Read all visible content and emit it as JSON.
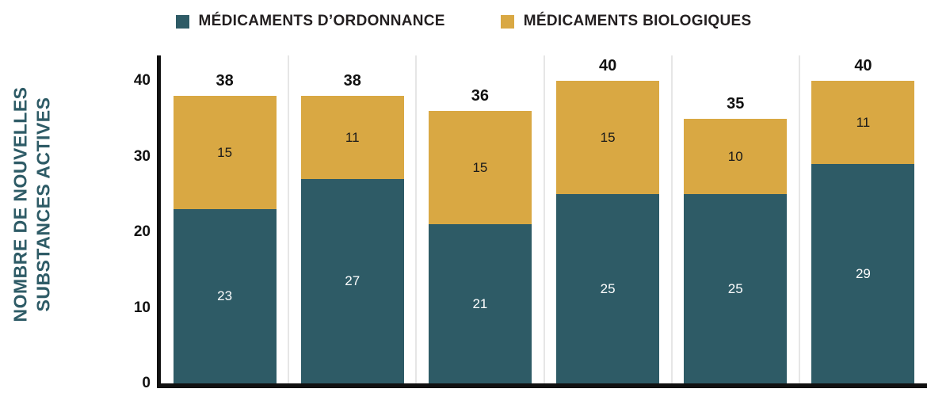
{
  "legend": {
    "position": "top",
    "items": [
      {
        "label": "MÉDICAMENTS D’ORDONNANCE",
        "color": "#2e5b66"
      },
      {
        "label": "MÉDICAMENTS BIOLOGIQUES",
        "color": "#d9a843"
      }
    ]
  },
  "chart_data": {
    "type": "bar",
    "stacked": true,
    "title": "",
    "xlabel": "",
    "ylabel": "NOMBRE DE NOUVELLES SUBSTANCES ACTIVES",
    "ylim": [
      0,
      40
    ],
    "yticks": [
      0,
      10,
      20,
      30,
      40
    ],
    "grid": "vertical-light",
    "legend_position": "top",
    "series": [
      {
        "name": "MÉDICAMENTS D’ORDONNANCE",
        "color": "#2e5b66",
        "values": [
          23,
          27,
          21,
          25,
          25,
          29
        ]
      },
      {
        "name": "MÉDICAMENTS BIOLOGIQUES",
        "color": "#d9a843",
        "values": [
          15,
          11,
          15,
          15,
          10,
          11
        ]
      }
    ],
    "totals": [
      38,
      38,
      36,
      40,
      35,
      40
    ]
  }
}
